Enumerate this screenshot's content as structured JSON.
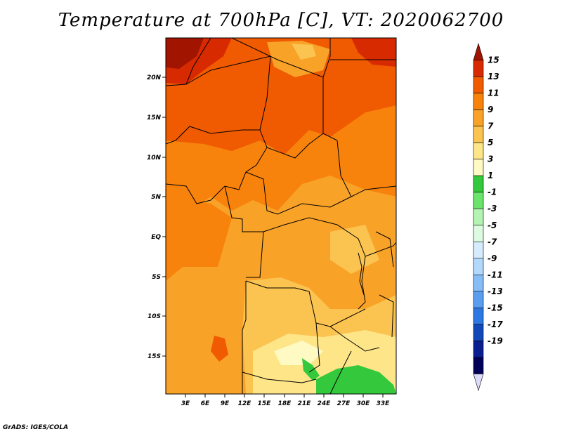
{
  "title": "Temperature at 700hPa [C], VT: 2020062700",
  "footer": "GrADS: IGES/COLA",
  "map": {
    "lat_labels": [
      "20N",
      "15N",
      "10N",
      "5N",
      "EQ",
      "5S",
      "10S",
      "15S"
    ],
    "lon_labels": [
      "3E",
      "6E",
      "9E",
      "12E",
      "15E",
      "18E",
      "21E",
      "24E",
      "27E",
      "30E",
      "33E"
    ]
  },
  "colorbar": {
    "levels": [
      "15",
      "13",
      "11",
      "9",
      "7",
      "5",
      "3",
      "1",
      "-1",
      "-3",
      "-5",
      "-7",
      "-9",
      "-11",
      "-13",
      "-15",
      "-17",
      "-19"
    ],
    "colors": [
      "#a01400",
      "#d72a00",
      "#f05a00",
      "#f7820c",
      "#f9a228",
      "#fbc350",
      "#fde588",
      "#fff9c3",
      "#34c83c",
      "#6ae46a",
      "#b4f3b4",
      "#ddfbe1",
      "#d6ecfd",
      "#b2d8fb",
      "#86bdf6",
      "#5a9ef0",
      "#2c78e2",
      "#1048b8",
      "#0a1e90",
      "#000058",
      "#dcdcfa"
    ]
  }
}
